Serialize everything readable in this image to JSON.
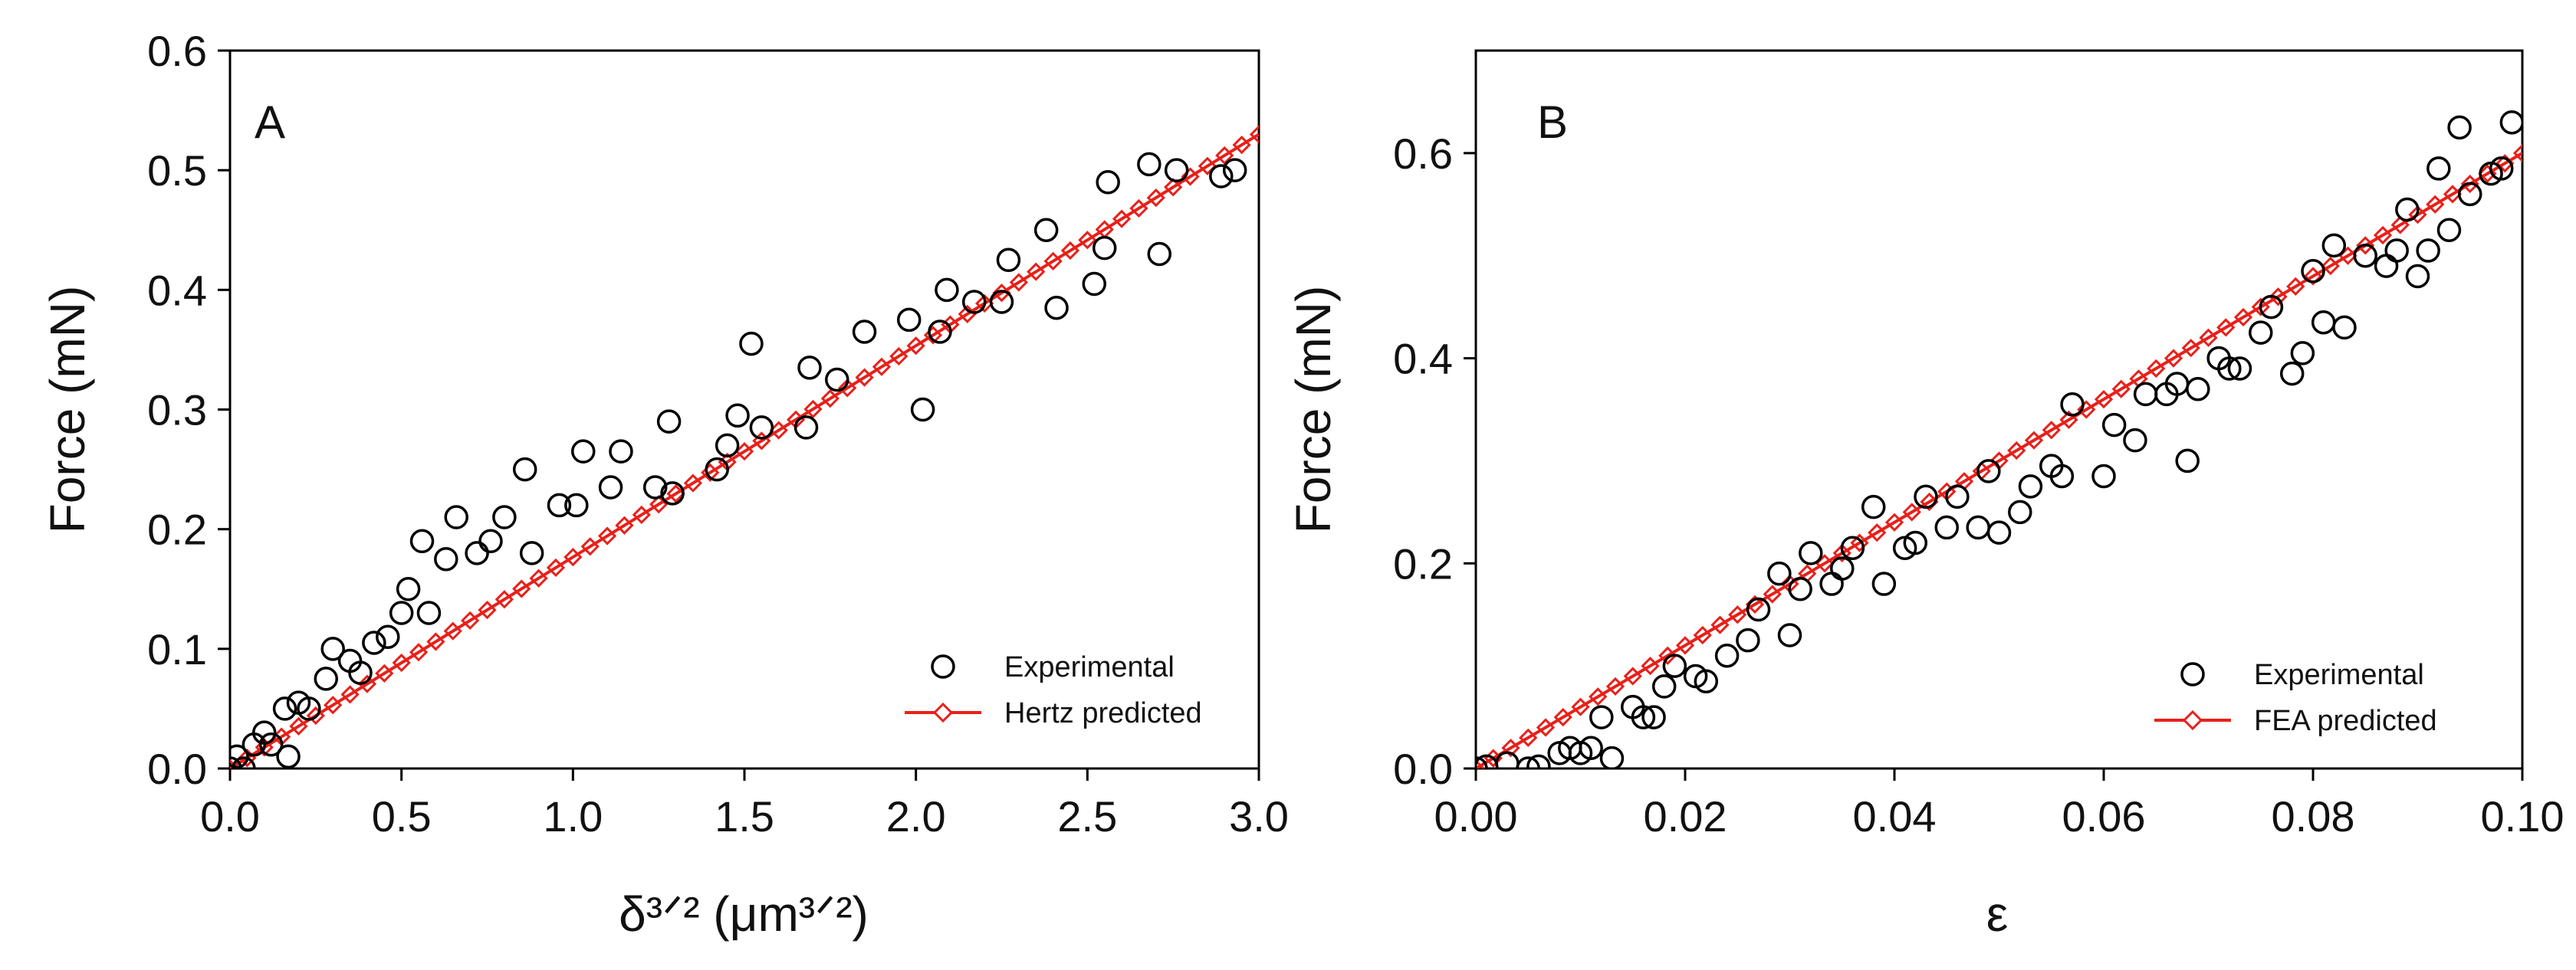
{
  "chart_data": [
    {
      "panel": "A",
      "type": "scatter",
      "xlabel": "δ³ᐟ² (μm³ᐟ²)",
      "ylabel": "Force  (mN)",
      "xlim": [
        0.0,
        3.0
      ],
      "ylim": [
        0.0,
        0.6
      ],
      "xticks": [
        "0.0",
        "0.5",
        "1.0",
        "1.5",
        "2.0",
        "2.5",
        "3.0"
      ],
      "yticks": [
        "0.0",
        "0.1",
        "0.2",
        "0.3",
        "0.4",
        "0.5",
        "0.6"
      ],
      "legend_position": "bottom-right",
      "series": [
        {
          "name": "Experimental",
          "marker": "open-circle",
          "color": "#000000",
          "x": [
            0.0,
            0.02,
            0.04,
            0.07,
            0.1,
            0.12,
            0.16,
            0.17,
            0.2,
            0.23,
            0.28,
            0.3,
            0.35,
            0.38,
            0.42,
            0.46,
            0.5,
            0.52,
            0.56,
            0.58,
            0.63,
            0.66,
            0.72,
            0.76,
            0.8,
            0.86,
            0.88,
            0.96,
            1.01,
            1.03,
            1.11,
            1.14,
            1.24,
            1.28,
            1.29,
            1.42,
            1.45,
            1.48,
            1.52,
            1.55,
            1.68,
            1.69,
            1.77,
            1.85,
            1.98,
            2.02,
            2.07,
            2.09,
            2.17,
            2.25,
            2.27,
            2.38,
            2.41,
            2.52,
            2.55,
            2.56,
            2.68,
            2.71,
            2.76,
            2.89,
            2.93
          ],
          "y": [
            0.0,
            0.01,
            0.0,
            0.02,
            0.03,
            0.02,
            0.05,
            0.01,
            0.055,
            0.05,
            0.075,
            0.1,
            0.09,
            0.08,
            0.105,
            0.11,
            0.13,
            0.15,
            0.19,
            0.13,
            0.175,
            0.21,
            0.18,
            0.19,
            0.21,
            0.25,
            0.18,
            0.22,
            0.22,
            0.265,
            0.235,
            0.265,
            0.235,
            0.29,
            0.23,
            0.25,
            0.27,
            0.295,
            0.355,
            0.285,
            0.285,
            0.335,
            0.325,
            0.365,
            0.375,
            0.3,
            0.365,
            0.4,
            0.39,
            0.39,
            0.425,
            0.45,
            0.385,
            0.405,
            0.435,
            0.49,
            0.505,
            0.43,
            0.5,
            0.495,
            0.5
          ]
        },
        {
          "name": "Hertz predicted",
          "marker": "open-diamond",
          "line": true,
          "color": "#e8201a",
          "x": [
            0.0,
            3.0
          ],
          "y": [
            0.0,
            0.53
          ]
        }
      ]
    },
    {
      "panel": "B",
      "type": "scatter",
      "xlabel": "ε",
      "ylabel": "Force  (mN)",
      "xlim": [
        0.0,
        0.1
      ],
      "ylim": [
        0.0,
        0.7
      ],
      "xticks": [
        "0.00",
        "0.02",
        "0.04",
        "0.06",
        "0.08",
        "0.10"
      ],
      "yticks": [
        "0.0",
        "0.2",
        "0.4",
        "0.6"
      ],
      "legend_position": "bottom-right",
      "series": [
        {
          "name": "Experimental",
          "marker": "open-circle",
          "color": "#000000",
          "x": [
            0.0,
            0.001,
            0.003,
            0.005,
            0.006,
            0.008,
            0.009,
            0.01,
            0.011,
            0.012,
            0.013,
            0.015,
            0.016,
            0.017,
            0.018,
            0.019,
            0.021,
            0.022,
            0.024,
            0.026,
            0.027,
            0.029,
            0.03,
            0.031,
            0.032,
            0.034,
            0.035,
            0.036,
            0.038,
            0.039,
            0.041,
            0.042,
            0.043,
            0.045,
            0.046,
            0.048,
            0.049,
            0.05,
            0.052,
            0.053,
            0.055,
            0.056,
            0.057,
            0.06,
            0.061,
            0.063,
            0.064,
            0.066,
            0.067,
            0.068,
            0.069,
            0.071,
            0.072,
            0.073,
            0.075,
            0.076,
            0.078,
            0.079,
            0.08,
            0.081,
            0.082,
            0.083,
            0.085,
            0.087,
            0.088,
            0.089,
            0.09,
            0.091,
            0.092,
            0.093,
            0.094,
            0.095,
            0.097,
            0.098,
            0.099
          ],
          "y": [
            0.0,
            0.002,
            0.005,
            0.0,
            0.002,
            0.015,
            0.02,
            0.015,
            0.02,
            0.05,
            0.01,
            0.06,
            0.05,
            0.05,
            0.08,
            0.1,
            0.09,
            0.085,
            0.11,
            0.125,
            0.155,
            0.19,
            0.13,
            0.175,
            0.21,
            0.18,
            0.195,
            0.215,
            0.255,
            0.18,
            0.215,
            0.22,
            0.265,
            0.235,
            0.265,
            0.235,
            0.29,
            0.23,
            0.25,
            0.275,
            0.295,
            0.285,
            0.355,
            0.285,
            0.335,
            0.32,
            0.365,
            0.365,
            0.375,
            0.3,
            0.37,
            0.4,
            0.39,
            0.39,
            0.425,
            0.45,
            0.385,
            0.405,
            0.485,
            0.435,
            0.51,
            0.43,
            0.5,
            0.49,
            0.505,
            0.545,
            0.48,
            0.505,
            0.585,
            0.525,
            0.625,
            0.56,
            0.58,
            0.585,
            0.63
          ]
        },
        {
          "name": "FEA predicted",
          "marker": "open-diamond",
          "line": true,
          "color": "#e8201a",
          "x": [
            0.0,
            0.1
          ],
          "y": [
            0.0,
            0.6
          ]
        }
      ]
    }
  ]
}
